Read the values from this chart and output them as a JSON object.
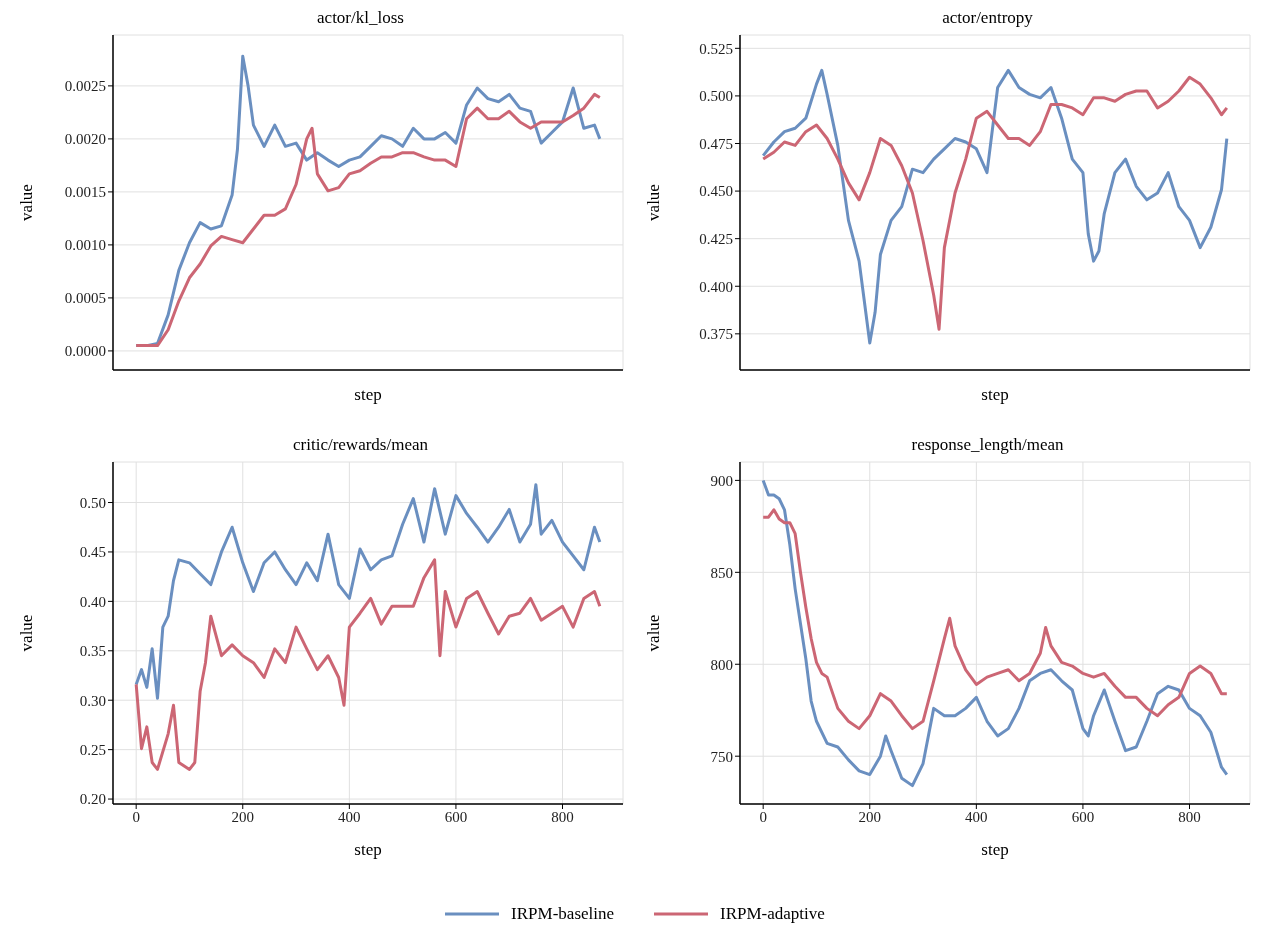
{
  "chart_data": [
    {
      "type": "line",
      "title": "actor/kl_loss",
      "xlabel": "step",
      "ylabel": "value",
      "xlim": [
        -43.5,
        913.5
      ],
      "ylim": [
        -0.00018,
        0.00298
      ],
      "xticks": [
        0,
        200,
        400,
        600,
        800
      ],
      "yticks": [
        {
          "value": 0,
          "label": "0.0000"
        },
        {
          "value": 0.0005,
          "label": "0.0005"
        },
        {
          "value": 0.001,
          "label": "0.0010"
        },
        {
          "value": 0.0015,
          "label": "0.0015"
        },
        {
          "value": 0.002,
          "label": "0.0020"
        },
        {
          "value": 0.0025,
          "label": "0.0025"
        }
      ],
      "tick_labels": "y",
      "grid": true,
      "marker": "none",
      "line_style": "solid",
      "legend": "bottom",
      "series": [
        {
          "name": "IRPM-baseline",
          "color": "#6a8fc0",
          "x": [
            0,
            20,
            40,
            60,
            80,
            100,
            120,
            140,
            160,
            180,
            190,
            200,
            210,
            220,
            240,
            260,
            280,
            300,
            320,
            340,
            360,
            380,
            400,
            420,
            440,
            460,
            480,
            500,
            520,
            540,
            560,
            580,
            600,
            620,
            640,
            660,
            680,
            700,
            720,
            740,
            760,
            780,
            800,
            820,
            840,
            860,
            870
          ],
          "values": [
            5e-05,
            5e-05,
            7e-05,
            0.00034,
            0.00076,
            0.00102,
            0.00121,
            0.00115,
            0.00118,
            0.00147,
            0.0019,
            0.00278,
            0.0025,
            0.00213,
            0.00193,
            0.00213,
            0.00193,
            0.00196,
            0.0018,
            0.00187,
            0.0018,
            0.00174,
            0.0018,
            0.00183,
            0.00193,
            0.00203,
            0.002,
            0.00193,
            0.0021,
            0.002,
            0.002,
            0.00206,
            0.00196,
            0.00232,
            0.00248,
            0.00238,
            0.00235,
            0.00242,
            0.00229,
            0.00226,
            0.00196,
            0.00206,
            0.00216,
            0.00248,
            0.0021,
            0.00213,
            0.002
          ]
        },
        {
          "name": "IRPM-adaptive",
          "color": "#cc6674",
          "x": [
            0,
            20,
            40,
            60,
            80,
            100,
            120,
            140,
            160,
            180,
            200,
            220,
            240,
            260,
            280,
            300,
            320,
            330,
            340,
            360,
            380,
            400,
            420,
            440,
            460,
            480,
            500,
            520,
            540,
            560,
            580,
            600,
            620,
            640,
            660,
            680,
            700,
            720,
            740,
            760,
            780,
            800,
            820,
            840,
            860,
            870
          ],
          "values": [
            5e-05,
            5e-05,
            5e-05,
            0.0002,
            0.00047,
            0.00069,
            0.00082,
            0.00099,
            0.00108,
            0.00105,
            0.00102,
            0.00115,
            0.00128,
            0.00128,
            0.00134,
            0.00157,
            0.002,
            0.0021,
            0.00167,
            0.00151,
            0.00154,
            0.00167,
            0.0017,
            0.00177,
            0.00183,
            0.00183,
            0.00187,
            0.00187,
            0.00183,
            0.0018,
            0.0018,
            0.00174,
            0.00219,
            0.00229,
            0.00219,
            0.00219,
            0.00226,
            0.00216,
            0.0021,
            0.00216,
            0.00216,
            0.00216,
            0.00222,
            0.00229,
            0.00242,
            0.00239
          ]
        }
      ]
    },
    {
      "type": "line",
      "title": "actor/entropy",
      "xlabel": "step",
      "ylabel": "value",
      "xlim": [
        -43.5,
        913.5
      ],
      "ylim": [
        0.356,
        0.532
      ],
      "xticks": [
        0,
        200,
        400,
        600,
        800
      ],
      "yticks": [
        0.375,
        {
          "value": 0.4,
          "label": "0.400"
        },
        0.425,
        {
          "value": 0.45,
          "label": "0.450"
        },
        0.475,
        {
          "value": 0.5,
          "label": "0.500"
        },
        0.525
      ],
      "tick_labels": "y",
      "grid": true,
      "marker": "none",
      "line_style": "solid",
      "series": [
        {
          "color": "#6a8fc0",
          "x": [
            0,
            20,
            40,
            60,
            80,
            100,
            110,
            120,
            140,
            160,
            180,
            190,
            200,
            210,
            220,
            240,
            260,
            280,
            300,
            320,
            340,
            360,
            380,
            400,
            420,
            440,
            460,
            480,
            500,
            520,
            540,
            560,
            580,
            600,
            610,
            620,
            630,
            640,
            660,
            680,
            700,
            720,
            740,
            760,
            780,
            800,
            820,
            840,
            860,
            870
          ],
          "values": [
            0.4686,
            0.4758,
            0.4812,
            0.483,
            0.4883,
            0.5062,
            0.5134,
            0.5008,
            0.474,
            0.4346,
            0.4132,
            0.3917,
            0.3702,
            0.3863,
            0.4167,
            0.4346,
            0.4418,
            0.4615,
            0.4597,
            0.4668,
            0.4722,
            0.4776,
            0.4758,
            0.4722,
            0.4597,
            0.5044,
            0.5134,
            0.5044,
            0.5008,
            0.499,
            0.5044,
            0.4883,
            0.4668,
            0.4597,
            0.4275,
            0.4132,
            0.4185,
            0.4382,
            0.4597,
            0.4668,
            0.4525,
            0.4454,
            0.449,
            0.4597,
            0.4418,
            0.4346,
            0.4203,
            0.431,
            0.4507,
            0.4776
          ]
        },
        {
          "color": "#cc6674",
          "x": [
            0,
            20,
            40,
            60,
            80,
            100,
            120,
            140,
            160,
            180,
            200,
            220,
            240,
            260,
            280,
            300,
            320,
            330,
            340,
            360,
            380,
            400,
            420,
            440,
            460,
            480,
            500,
            520,
            540,
            560,
            580,
            600,
            620,
            640,
            660,
            680,
            700,
            720,
            740,
            760,
            780,
            800,
            820,
            840,
            860,
            870
          ],
          "values": [
            0.4668,
            0.4704,
            0.4758,
            0.474,
            0.4812,
            0.4847,
            0.4776,
            0.4668,
            0.4543,
            0.4454,
            0.4597,
            0.4776,
            0.474,
            0.4633,
            0.449,
            0.4239,
            0.3953,
            0.3774,
            0.4203,
            0.449,
            0.4668,
            0.4883,
            0.4919,
            0.4847,
            0.4776,
            0.4776,
            0.474,
            0.4812,
            0.4955,
            0.4955,
            0.4937,
            0.4901,
            0.499,
            0.499,
            0.4972,
            0.5008,
            0.5026,
            0.5026,
            0.4937,
            0.4972,
            0.5026,
            0.5098,
            0.5062,
            0.499,
            0.4901,
            0.4937
          ]
        }
      ]
    },
    {
      "type": "line",
      "title": "critic/rewards/mean",
      "xlabel": "step",
      "ylabel": "value",
      "xlim": [
        -43.5,
        913.5
      ],
      "ylim": [
        0.195,
        0.541
      ],
      "xticks": [
        0,
        200,
        400,
        600,
        800
      ],
      "yticks": [
        {
          "value": 0.2,
          "label": "0.20"
        },
        0.25,
        {
          "value": 0.3,
          "label": "0.30"
        },
        0.35,
        {
          "value": 0.4,
          "label": "0.40"
        },
        0.45,
        {
          "value": 0.5,
          "label": "0.50"
        }
      ],
      "grid": true,
      "marker": "none",
      "line_style": "solid",
      "series": [
        {
          "color": "#6a8fc0",
          "x": [
            0,
            10,
            20,
            30,
            40,
            50,
            60,
            70,
            80,
            100,
            120,
            140,
            160,
            180,
            200,
            220,
            240,
            260,
            280,
            300,
            320,
            340,
            360,
            380,
            400,
            420,
            440,
            460,
            480,
            500,
            520,
            540,
            560,
            580,
            600,
            620,
            640,
            660,
            680,
            700,
            720,
            740,
            750,
            760,
            780,
            800,
            820,
            840,
            860,
            870
          ],
          "values": [
            0.316,
            0.331,
            0.313,
            0.352,
            0.302,
            0.374,
            0.385,
            0.421,
            0.442,
            0.439,
            0.428,
            0.417,
            0.45,
            0.475,
            0.439,
            0.41,
            0.439,
            0.45,
            0.432,
            0.417,
            0.439,
            0.421,
            0.468,
            0.417,
            0.403,
            0.453,
            0.432,
            0.442,
            0.446,
            0.478,
            0.504,
            0.46,
            0.514,
            0.468,
            0.507,
            0.489,
            0.475,
            0.46,
            0.475,
            0.493,
            0.46,
            0.478,
            0.518,
            0.468,
            0.482,
            0.46,
            0.446,
            0.432,
            0.475,
            0.46
          ]
        },
        {
          "color": "#cc6674",
          "x": [
            0,
            10,
            20,
            30,
            40,
            60,
            70,
            80,
            100,
            110,
            120,
            130,
            140,
            160,
            180,
            200,
            220,
            240,
            260,
            280,
            300,
            320,
            340,
            360,
            380,
            390,
            400,
            420,
            440,
            460,
            480,
            500,
            520,
            540,
            560,
            570,
            580,
            600,
            620,
            640,
            660,
            680,
            700,
            720,
            740,
            760,
            780,
            800,
            820,
            840,
            860,
            870
          ],
          "values": [
            0.316,
            0.251,
            0.273,
            0.237,
            0.23,
            0.266,
            0.295,
            0.237,
            0.23,
            0.237,
            0.309,
            0.338,
            0.385,
            0.345,
            0.356,
            0.345,
            0.338,
            0.323,
            0.352,
            0.338,
            0.374,
            0.352,
            0.331,
            0.345,
            0.323,
            0.295,
            0.374,
            0.388,
            0.403,
            0.377,
            0.395,
            0.395,
            0.395,
            0.424,
            0.442,
            0.345,
            0.41,
            0.374,
            0.403,
            0.41,
            0.388,
            0.367,
            0.385,
            0.388,
            0.403,
            0.381,
            0.388,
            0.395,
            0.374,
            0.403,
            0.41,
            0.395
          ]
        }
      ]
    },
    {
      "type": "line",
      "title": "response_length/mean",
      "xlabel": "step",
      "ylabel": "value",
      "xlim": [
        -43.5,
        913.5
      ],
      "ylim": [
        724,
        910
      ],
      "xticks": [
        0,
        200,
        400,
        600,
        800
      ],
      "yticks": [
        750,
        800,
        850,
        900
      ],
      "grid": true,
      "marker": "none",
      "line_style": "solid",
      "series": [
        {
          "color": "#6a8fc0",
          "x": [
            0,
            10,
            20,
            30,
            40,
            50,
            60,
            70,
            80,
            90,
            100,
            120,
            140,
            160,
            180,
            200,
            220,
            230,
            240,
            260,
            280,
            300,
            320,
            340,
            360,
            380,
            400,
            420,
            440,
            460,
            480,
            500,
            520,
            540,
            560,
            580,
            600,
            610,
            620,
            640,
            660,
            680,
            700,
            720,
            740,
            760,
            780,
            800,
            820,
            840,
            860,
            870
          ],
          "values": [
            900,
            892,
            892,
            890,
            884,
            865,
            841,
            822,
            803,
            780,
            769,
            757,
            755,
            748,
            742,
            740,
            750,
            761,
            753,
            738,
            734,
            746,
            776,
            772,
            772,
            776,
            782,
            769,
            761,
            765,
            776,
            791,
            795,
            797,
            791,
            786,
            765,
            761,
            772,
            786,
            769,
            753,
            755,
            769,
            784,
            788,
            786,
            776,
            772,
            763,
            744,
            740
          ]
        },
        {
          "color": "#cc6674",
          "x": [
            0,
            10,
            20,
            30,
            40,
            50,
            60,
            70,
            80,
            90,
            100,
            110,
            120,
            140,
            160,
            180,
            200,
            220,
            240,
            260,
            280,
            300,
            320,
            340,
            350,
            360,
            380,
            400,
            420,
            440,
            460,
            480,
            500,
            520,
            530,
            540,
            560,
            580,
            600,
            620,
            640,
            660,
            680,
            700,
            720,
            740,
            760,
            780,
            800,
            820,
            840,
            860,
            870
          ],
          "values": [
            880,
            880,
            884,
            879,
            877,
            877,
            871,
            850,
            831,
            814,
            801,
            795,
            793,
            776,
            769,
            765,
            772,
            784,
            780,
            772,
            765,
            769,
            791,
            814,
            825,
            810,
            797,
            789,
            793,
            795,
            797,
            791,
            795,
            806,
            820,
            810,
            801,
            799,
            795,
            793,
            795,
            788,
            782,
            782,
            776,
            772,
            778,
            782,
            795,
            799,
            795,
            784,
            784
          ]
        }
      ]
    }
  ]
}
